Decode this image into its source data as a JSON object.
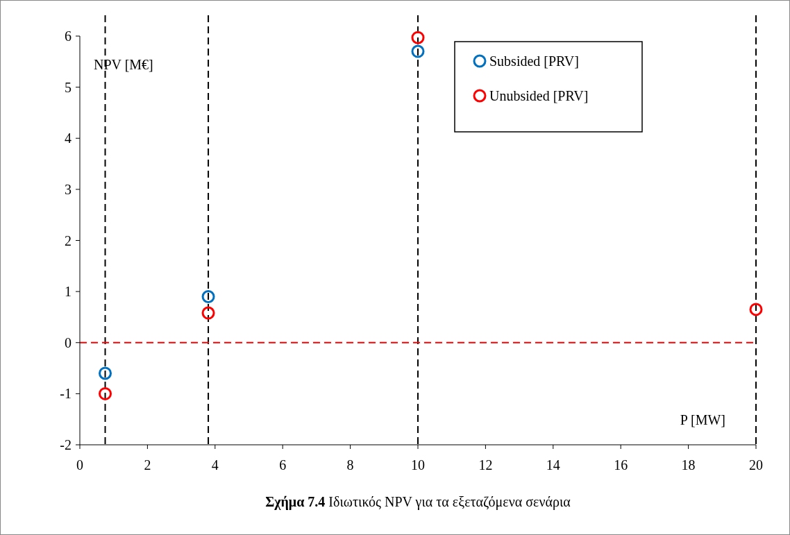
{
  "chart_data": {
    "type": "scatter",
    "title": "Σχήμα 7.4 Ιδιωτικός NPV για τα εξεταζόμενα σενάρια",
    "xlabel": "P [MW]",
    "ylabel": "NPV [M€]",
    "series": [
      {
        "name": "Subsided [PRV]",
        "color": "#0070c0",
        "x": [
          0.75,
          3.8,
          10
        ],
        "values": [
          -0.6,
          0.9,
          5.7
        ]
      },
      {
        "name": "Unubsided [PRV]",
        "color": "#ff0000",
        "x": [
          0.75,
          3.8,
          10,
          20
        ],
        "values": [
          -1.0,
          0.58,
          5.97,
          0.65
        ]
      }
    ],
    "xlim": [
      0,
      20
    ],
    "xticks": [
      0,
      2,
      4,
      6,
      8,
      10,
      12,
      14,
      16,
      18,
      20
    ],
    "ylim": [
      -2,
      6
    ],
    "yticks": [
      -2,
      -1,
      0,
      1,
      2,
      3,
      4,
      5,
      6
    ],
    "ref_lines": [
      {
        "axis": "x",
        "value": 0.75,
        "color": "#000000",
        "line_style": "dashed"
      },
      {
        "axis": "x",
        "value": 3.8,
        "color": "#000000",
        "line_style": "dashed"
      },
      {
        "axis": "x",
        "value": 10,
        "color": "#000000",
        "line_style": "dashed"
      },
      {
        "axis": "x",
        "value": 20,
        "color": "#000000",
        "line_style": "dashed"
      },
      {
        "axis": "y",
        "value": 0,
        "color": "#ff0000",
        "line_style": "dashed"
      }
    ],
    "grid": false,
    "legend": "top right",
    "marker": "circle"
  }
}
